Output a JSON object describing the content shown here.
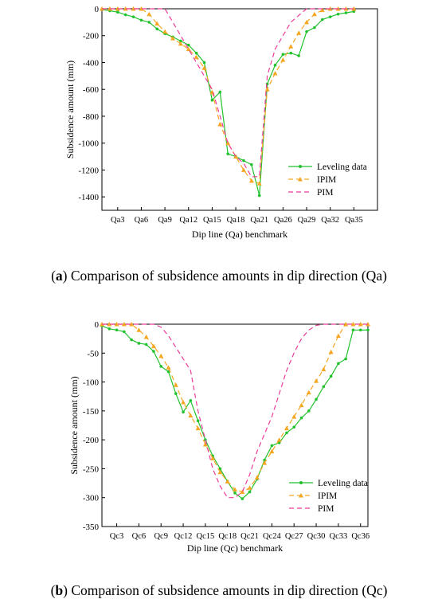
{
  "colors": {
    "leveling": "#22c22e",
    "ipim": "#f5a623",
    "pim": "#ea3c9a"
  },
  "chart_data": [
    {
      "type": "line",
      "letter": "a",
      "caption": "Comparison of subsidence amounts in dip direction (Qa)",
      "xlabel": "Dip line (Qa) benchmark",
      "ylabel": "Subsidence amount (mm)",
      "xlim": [
        1,
        36
      ],
      "ylim": [
        -1500,
        0
      ],
      "yticks": [
        0,
        -200,
        -400,
        -600,
        -800,
        -1000,
        -1200,
        -1400
      ],
      "xticks": [
        {
          "x": 3,
          "label": "Qa3"
        },
        {
          "x": 6,
          "label": "Qa6"
        },
        {
          "x": 9,
          "label": "Qa9"
        },
        {
          "x": 12,
          "label": "Qa12"
        },
        {
          "x": 15,
          "label": "Qa15"
        },
        {
          "x": 18,
          "label": "Qa18"
        },
        {
          "x": 21,
          "label": "Qa21"
        },
        {
          "x": 24,
          "label": "Qa26"
        },
        {
          "x": 27,
          "label": "Qa29"
        },
        {
          "x": 30,
          "label": "Qa32"
        },
        {
          "x": 33,
          "label": "Qa35"
        }
      ],
      "legend_position": "bottom-right",
      "series": [
        {
          "name": "Leveling data",
          "color_key": "leveling",
          "marker": "dot",
          "dash": "",
          "x": [
            1,
            2,
            3,
            4,
            5,
            6,
            7,
            8,
            9,
            10,
            11,
            12,
            13,
            14,
            15,
            16,
            17,
            18,
            19,
            20,
            21,
            22,
            23,
            24,
            25,
            26,
            27,
            28,
            29,
            30,
            31,
            32,
            33
          ],
          "y": [
            -5,
            -15,
            -25,
            -45,
            -60,
            -85,
            -100,
            -150,
            -185,
            -210,
            -240,
            -270,
            -330,
            -400,
            -680,
            -620,
            -1080,
            -1100,
            -1130,
            -1160,
            -1390,
            -560,
            -420,
            -340,
            -330,
            -350,
            -170,
            -140,
            -80,
            -60,
            -40,
            -30,
            -20
          ]
        },
        {
          "name": "IPIM",
          "color_key": "ipim",
          "marker": "triangle",
          "dash": "6,4",
          "x": [
            1,
            2,
            3,
            4,
            5,
            6,
            7,
            8,
            9,
            10,
            11,
            12,
            13,
            14,
            15,
            16,
            17,
            18,
            19,
            20,
            21,
            22,
            23,
            24,
            25,
            26,
            27,
            28,
            29,
            30,
            31,
            32,
            33
          ],
          "y": [
            0,
            0,
            0,
            0,
            0,
            0,
            -40,
            -110,
            -170,
            -220,
            -260,
            -300,
            -360,
            -440,
            -620,
            -860,
            -1000,
            -1100,
            -1200,
            -1280,
            -1300,
            -600,
            -480,
            -380,
            -280,
            -180,
            -100,
            -40,
            -10,
            0,
            0,
            0,
            0
          ]
        },
        {
          "name": "PIM",
          "color_key": "pim",
          "marker": "dot",
          "dash": "6,4",
          "x": [
            1,
            2,
            3,
            4,
            5,
            6,
            7,
            8,
            9,
            10,
            11,
            12,
            13,
            14,
            15,
            16,
            17,
            18,
            19,
            20,
            21,
            22,
            23,
            24,
            25,
            26,
            27,
            28,
            29,
            30,
            31,
            32,
            33
          ],
          "y": [
            0,
            0,
            0,
            0,
            0,
            0,
            0,
            0,
            0,
            -100,
            -200,
            -300,
            -400,
            -500,
            -600,
            -800,
            -1000,
            -1100,
            -1150,
            -1250,
            -1250,
            -500,
            -300,
            -200,
            -100,
            -50,
            0,
            0,
            0,
            0,
            0,
            0,
            0
          ]
        }
      ]
    },
    {
      "type": "line",
      "letter": "b",
      "caption": "Comparison of subsidence amounts in dip direction (Qc)",
      "xlabel": "Dip line (Qc) benchmark",
      "ylabel": "Subsidence amount (mm)",
      "xlim": [
        1,
        37
      ],
      "ylim": [
        -350,
        0
      ],
      "yticks": [
        0,
        -50,
        -100,
        -150,
        -200,
        -250,
        -300,
        -350
      ],
      "xticks": [
        {
          "x": 3,
          "label": "Qc3"
        },
        {
          "x": 6,
          "label": "Qc6"
        },
        {
          "x": 9,
          "label": "Qc9"
        },
        {
          "x": 12,
          "label": "Qc12"
        },
        {
          "x": 15,
          "label": "Qc15"
        },
        {
          "x": 18,
          "label": "Qc18"
        },
        {
          "x": 21,
          "label": "Qc21"
        },
        {
          "x": 24,
          "label": "Qc24"
        },
        {
          "x": 27,
          "label": "Qc27"
        },
        {
          "x": 30,
          "label": "Qc30"
        },
        {
          "x": 33,
          "label": "Qc33"
        },
        {
          "x": 36,
          "label": "Qc36"
        }
      ],
      "legend_position": "bottom-right",
      "series": [
        {
          "name": "Leveling data",
          "color_key": "leveling",
          "marker": "dot",
          "dash": "",
          "x": [
            1,
            2,
            3,
            4,
            5,
            6,
            7,
            8,
            9,
            10,
            11,
            12,
            13,
            14,
            15,
            16,
            17,
            18,
            19,
            20,
            21,
            22,
            23,
            24,
            25,
            26,
            27,
            28,
            29,
            30,
            31,
            32,
            33,
            34,
            35,
            36,
            37
          ],
          "y": [
            -3,
            -8,
            -10,
            -13,
            -27,
            -33,
            -35,
            -47,
            -73,
            -82,
            -120,
            -152,
            -132,
            -167,
            -200,
            -228,
            -250,
            -272,
            -292,
            -302,
            -290,
            -268,
            -235,
            -210,
            -205,
            -188,
            -178,
            -162,
            -150,
            -130,
            -108,
            -90,
            -68,
            -60,
            -10,
            -10,
            -10
          ]
        },
        {
          "name": "IPIM",
          "color_key": "ipim",
          "marker": "triangle",
          "dash": "6,4",
          "x": [
            1,
            2,
            3,
            4,
            5,
            6,
            7,
            8,
            9,
            10,
            11,
            12,
            13,
            14,
            15,
            16,
            17,
            18,
            19,
            20,
            21,
            22,
            23,
            24,
            25,
            26,
            27,
            28,
            29,
            30,
            31,
            32,
            33,
            34,
            35,
            36,
            37
          ],
          "y": [
            0,
            0,
            0,
            0,
            0,
            -10,
            -22,
            -38,
            -55,
            -75,
            -105,
            -135,
            -158,
            -180,
            -208,
            -232,
            -256,
            -272,
            -286,
            -290,
            -283,
            -265,
            -240,
            -220,
            -200,
            -180,
            -160,
            -140,
            -118,
            -98,
            -78,
            -48,
            -20,
            0,
            0,
            0,
            0
          ]
        },
        {
          "name": "PIM",
          "color_key": "pim",
          "marker": "dot",
          "dash": "6,4",
          "x": [
            1,
            2,
            3,
            4,
            5,
            6,
            7,
            8,
            9,
            10,
            11,
            12,
            13,
            14,
            15,
            16,
            17,
            18,
            19,
            20,
            21,
            22,
            23,
            24,
            25,
            26,
            27,
            28,
            29,
            30,
            31,
            32,
            33,
            34,
            35,
            36,
            37
          ],
          "y": [
            0,
            0,
            0,
            0,
            0,
            0,
            0,
            0,
            -5,
            -20,
            -40,
            -60,
            -80,
            -150,
            -200,
            -250,
            -280,
            -300,
            -300,
            -290,
            -260,
            -220,
            -190,
            -160,
            -120,
            -80,
            -50,
            -25,
            -10,
            -2,
            0,
            0,
            0,
            0,
            0,
            0,
            0
          ]
        }
      ]
    }
  ]
}
